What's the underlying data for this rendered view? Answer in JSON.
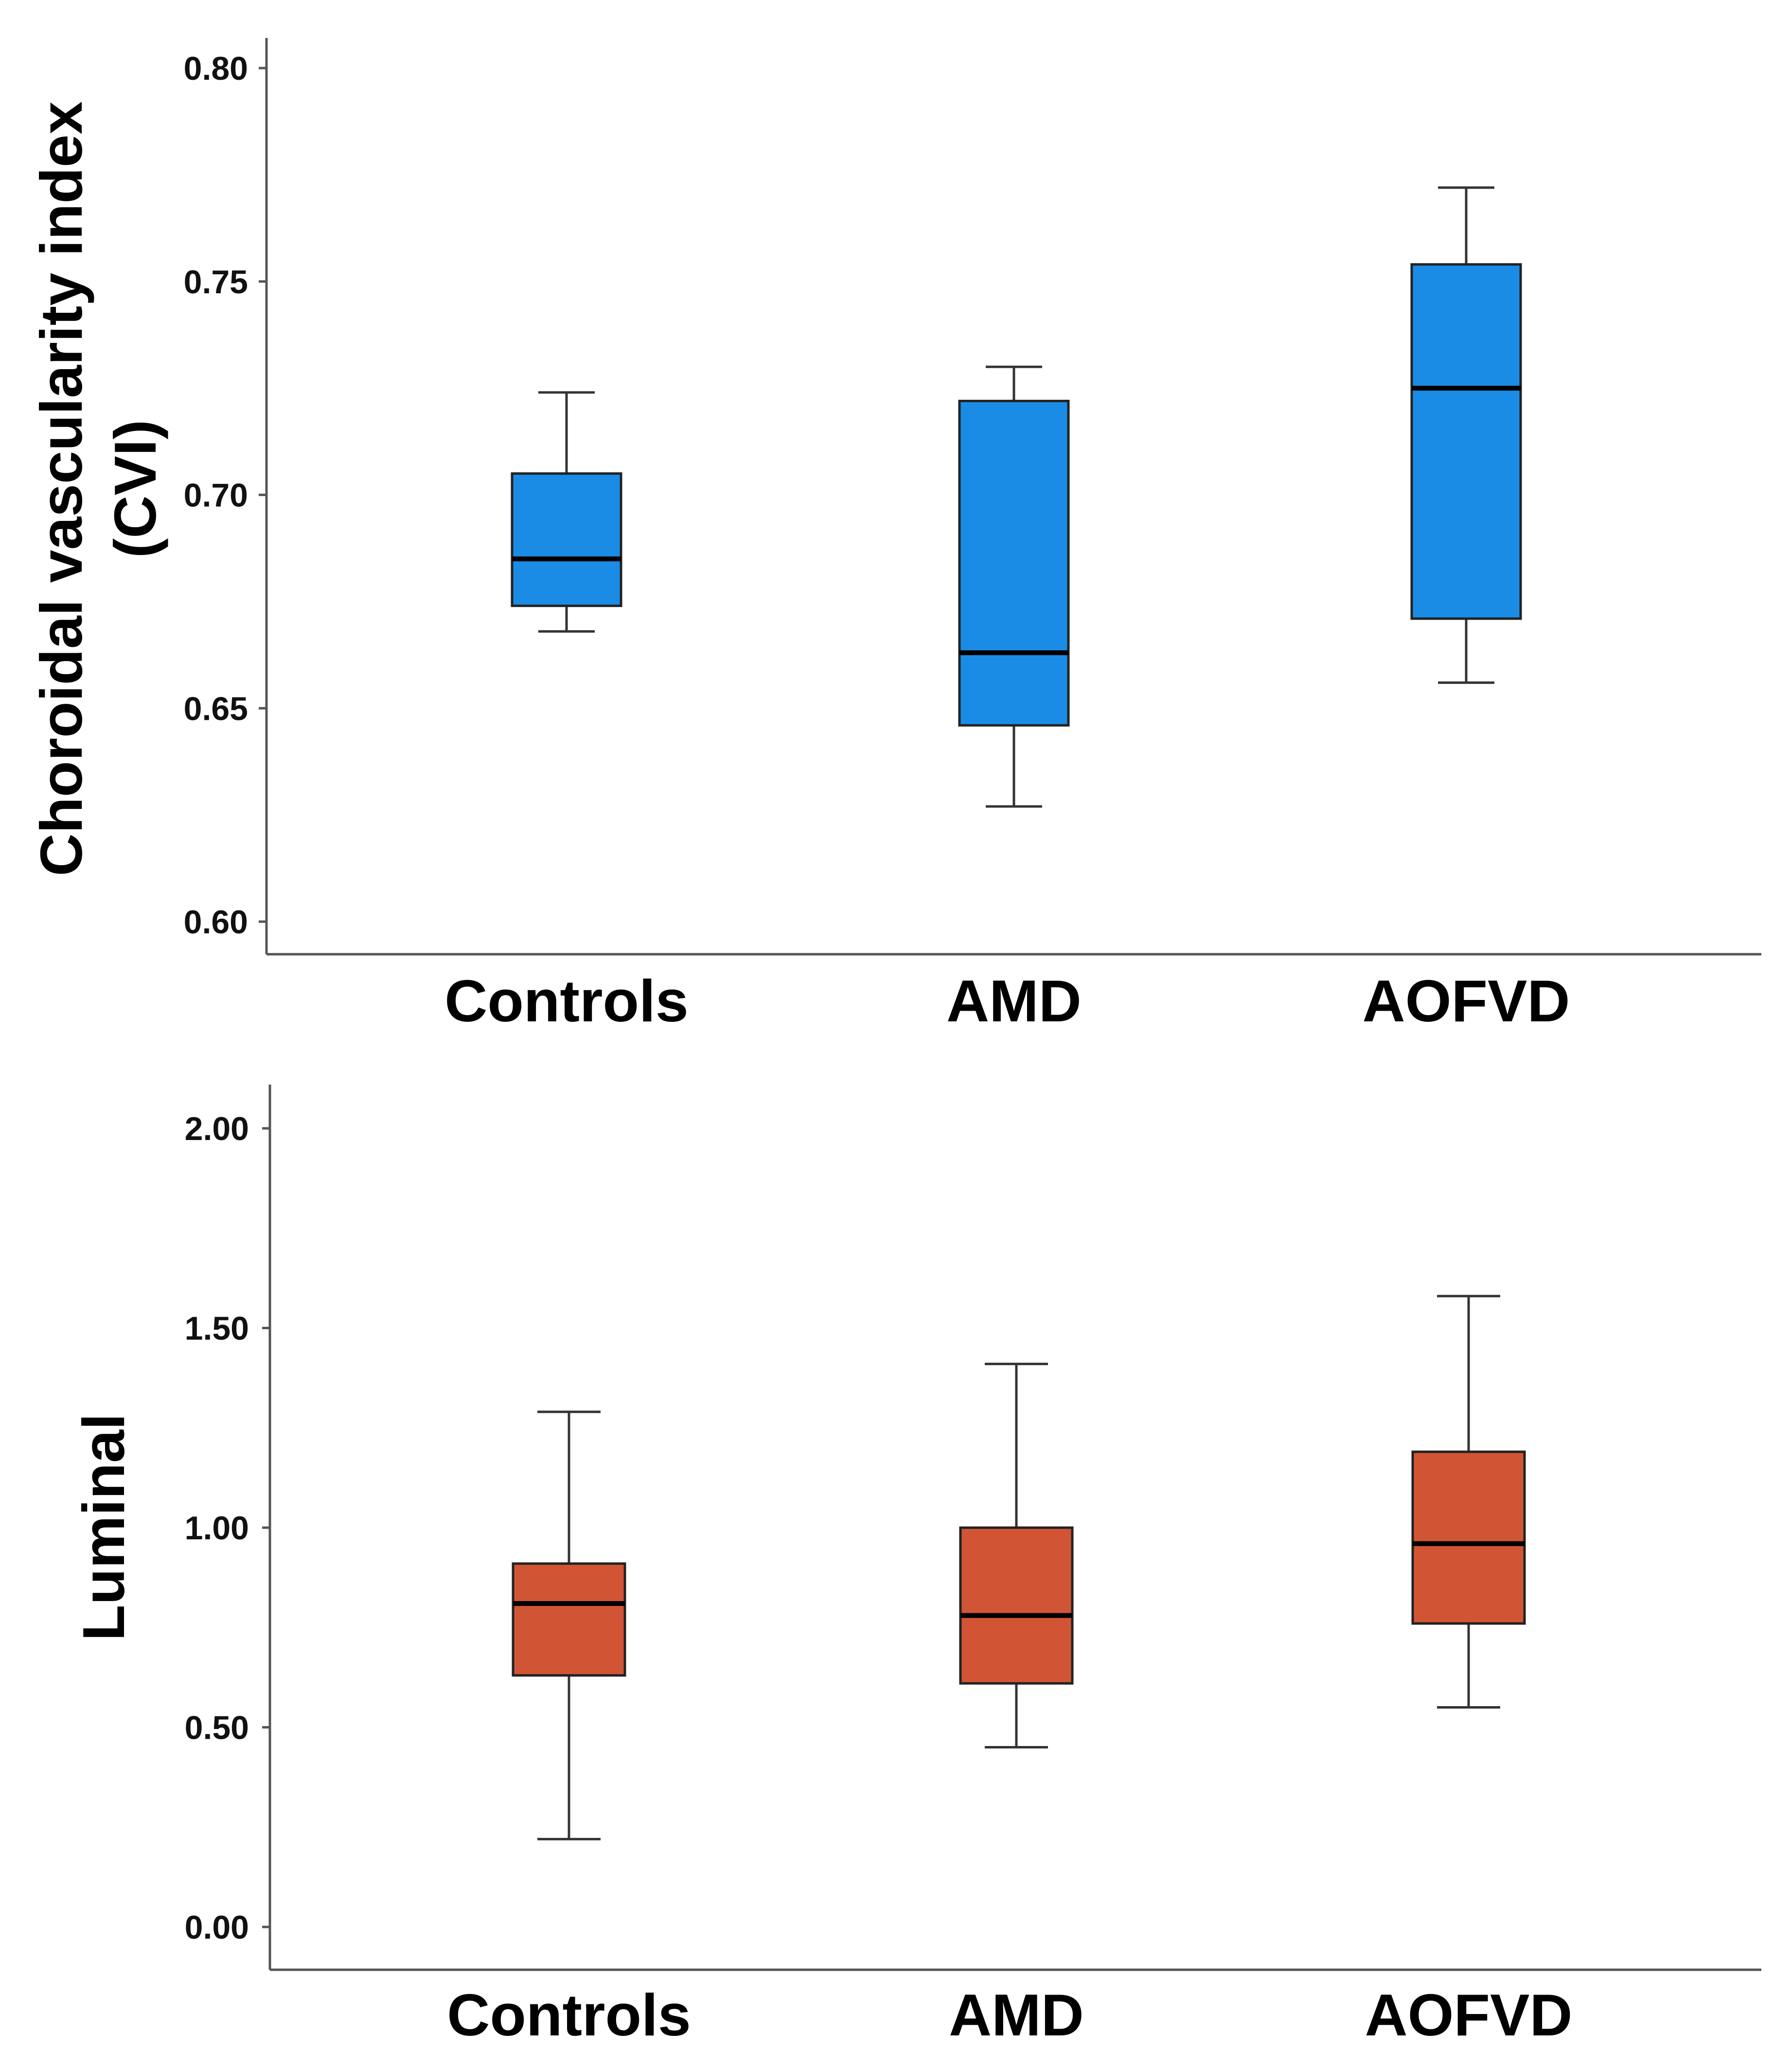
{
  "chart_data": [
    {
      "type": "box",
      "id": "cvi",
      "ylabel_lines": [
        "Choroidal vascularity index",
        "(CVI)"
      ],
      "categories": [
        "Controls",
        "AMD",
        "AOFVD"
      ],
      "ylim": [
        0.595,
        0.805
      ],
      "yticks": [
        0.6,
        0.65,
        0.7,
        0.75,
        0.8
      ],
      "ytick_labels": [
        "0.60",
        "0.65",
        "0.70",
        "0.75",
        "0.80"
      ],
      "box_color": "#1a8ce6",
      "boxes": [
        {
          "category": "Controls",
          "min": 0.668,
          "q1": 0.674,
          "median": 0.685,
          "q3": 0.705,
          "max": 0.724
        },
        {
          "category": "AMD",
          "min": 0.627,
          "q1": 0.646,
          "median": 0.663,
          "q3": 0.722,
          "max": 0.73
        },
        {
          "category": "AOFVD",
          "min": 0.656,
          "q1": 0.671,
          "median": 0.725,
          "q3": 0.754,
          "max": 0.772
        }
      ]
    },
    {
      "type": "box",
      "id": "luminal",
      "ylabel_lines": [
        "Luminal"
      ],
      "categories": [
        "Controls",
        "AMD",
        "AOFVD"
      ],
      "ylim": [
        -0.1,
        2.1
      ],
      "yticks": [
        0.0,
        0.5,
        1.0,
        1.5,
        2.0
      ],
      "ytick_labels": [
        "0.00",
        "0.50",
        "1.00",
        "1.50",
        "2.00"
      ],
      "box_color": "#d15535",
      "boxes": [
        {
          "category": "Controls",
          "min": 0.22,
          "q1": 0.63,
          "median": 0.81,
          "q3": 0.91,
          "max": 1.29
        },
        {
          "category": "AMD",
          "min": 0.45,
          "q1": 0.61,
          "median": 0.78,
          "q3": 1.0,
          "max": 1.41
        },
        {
          "category": "AOFVD",
          "min": 0.55,
          "q1": 0.76,
          "median": 0.96,
          "q3": 1.19,
          "max": 1.58
        }
      ]
    }
  ]
}
